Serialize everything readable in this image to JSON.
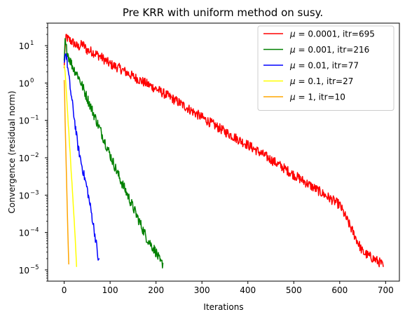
{
  "chart_data": {
    "type": "line",
    "title": "Pre KRR with uniform method on susy.",
    "xlabel": "Iterations",
    "ylabel": "Convergence (residual norm)",
    "xscale": "linear",
    "yscale": "log",
    "xlim": [
      -36,
      730
    ],
    "ylim": [
      5e-06,
      40
    ],
    "xticks": [
      0,
      100,
      200,
      300,
      400,
      500,
      600,
      700
    ],
    "xtick_labels": [
      "0",
      "100",
      "200",
      "300",
      "400",
      "500",
      "600",
      "700"
    ],
    "yticks": [
      1e-05,
      0.0001,
      0.001,
      0.01,
      0.1,
      1,
      10
    ],
    "ytick_labels": [
      {
        "base": "10",
        "exp": "−5"
      },
      {
        "base": "10",
        "exp": "−4"
      },
      {
        "base": "10",
        "exp": "−3"
      },
      {
        "base": "10",
        "exp": "−2"
      },
      {
        "base": "10",
        "exp": "−1"
      },
      {
        "base": "10",
        "exp": "0"
      },
      {
        "base": "10",
        "exp": "1"
      }
    ],
    "grid": false,
    "legend_position": "top-right",
    "series": [
      {
        "name": "μ = 0.0001, itr=695",
        "legend_mu": "μ",
        "legend_rest": " = 0.0001, itr=695",
        "color": "#ff0000",
        "x": [
          0,
          2,
          5,
          8,
          12,
          20,
          30,
          40,
          50,
          60,
          80,
          100,
          120,
          150,
          200,
          250,
          300,
          350,
          400,
          450,
          500,
          550,
          600,
          650,
          690,
          695
        ],
        "y": [
          2.5,
          10,
          18,
          15,
          14,
          12,
          9,
          11,
          7.5,
          7,
          5,
          3.2,
          2.5,
          1.5,
          0.7,
          0.3,
          0.12,
          0.05,
          0.022,
          0.009,
          0.0035,
          0.0014,
          0.00055,
          3e-05,
          1.5e-05,
          1.2e-05
        ],
        "noise": 0.13
      },
      {
        "name": "μ = 0.001, itr=216",
        "legend_mu": "μ",
        "legend_rest": " = 0.001, itr=216",
        "color": "#008000",
        "x": [
          0,
          2,
          4,
          7,
          10,
          15,
          20,
          30,
          40,
          50,
          60,
          70,
          80,
          100,
          120,
          140,
          160,
          180,
          200,
          210,
          216
        ],
        "y": [
          4,
          12,
          9,
          7,
          5,
          3.5,
          2.5,
          1.6,
          0.8,
          0.4,
          0.2,
          0.1,
          0.05,
          0.012,
          0.003,
          0.0009,
          0.00025,
          7e-05,
          3e-05,
          1.5e-05,
          1.5e-05
        ],
        "noise": 0.14
      },
      {
        "name": "μ = 0.01, itr=77",
        "legend_mu": "μ",
        "legend_rest": " = 0.01, itr=77",
        "color": "#0000ff",
        "x": [
          0,
          3,
          6,
          10,
          15,
          20,
          25,
          30,
          40,
          50,
          60,
          70,
          75,
          77
        ],
        "y": [
          3.5,
          7,
          4,
          1.5,
          0.5,
          0.18,
          0.06,
          0.02,
          0.005,
          0.0015,
          0.0003,
          5e-05,
          1.6e-05,
          2e-05
        ],
        "noise": 0.12
      },
      {
        "name": "μ = 0.1, itr=27",
        "legend_mu": "μ",
        "legend_rest": " = 0.1, itr=27",
        "color": "#ffff00",
        "x": [
          0,
          2,
          5,
          10,
          15,
          20,
          25,
          27
        ],
        "y": [
          3,
          2,
          0.5,
          0.05,
          0.005,
          0.0005,
          4e-05,
          1.2e-05
        ],
        "noise": 0.05
      },
      {
        "name": "μ = 1, itr=10",
        "legend_mu": "μ",
        "legend_rest": " = 1, itr=10",
        "color": "#ffa500",
        "x": [
          0,
          1,
          2,
          4,
          6,
          8,
          10
        ],
        "y": [
          1.2,
          0.5,
          0.1,
          0.01,
          0.001,
          0.0001,
          1.4e-05
        ],
        "noise": 0.0
      }
    ]
  }
}
